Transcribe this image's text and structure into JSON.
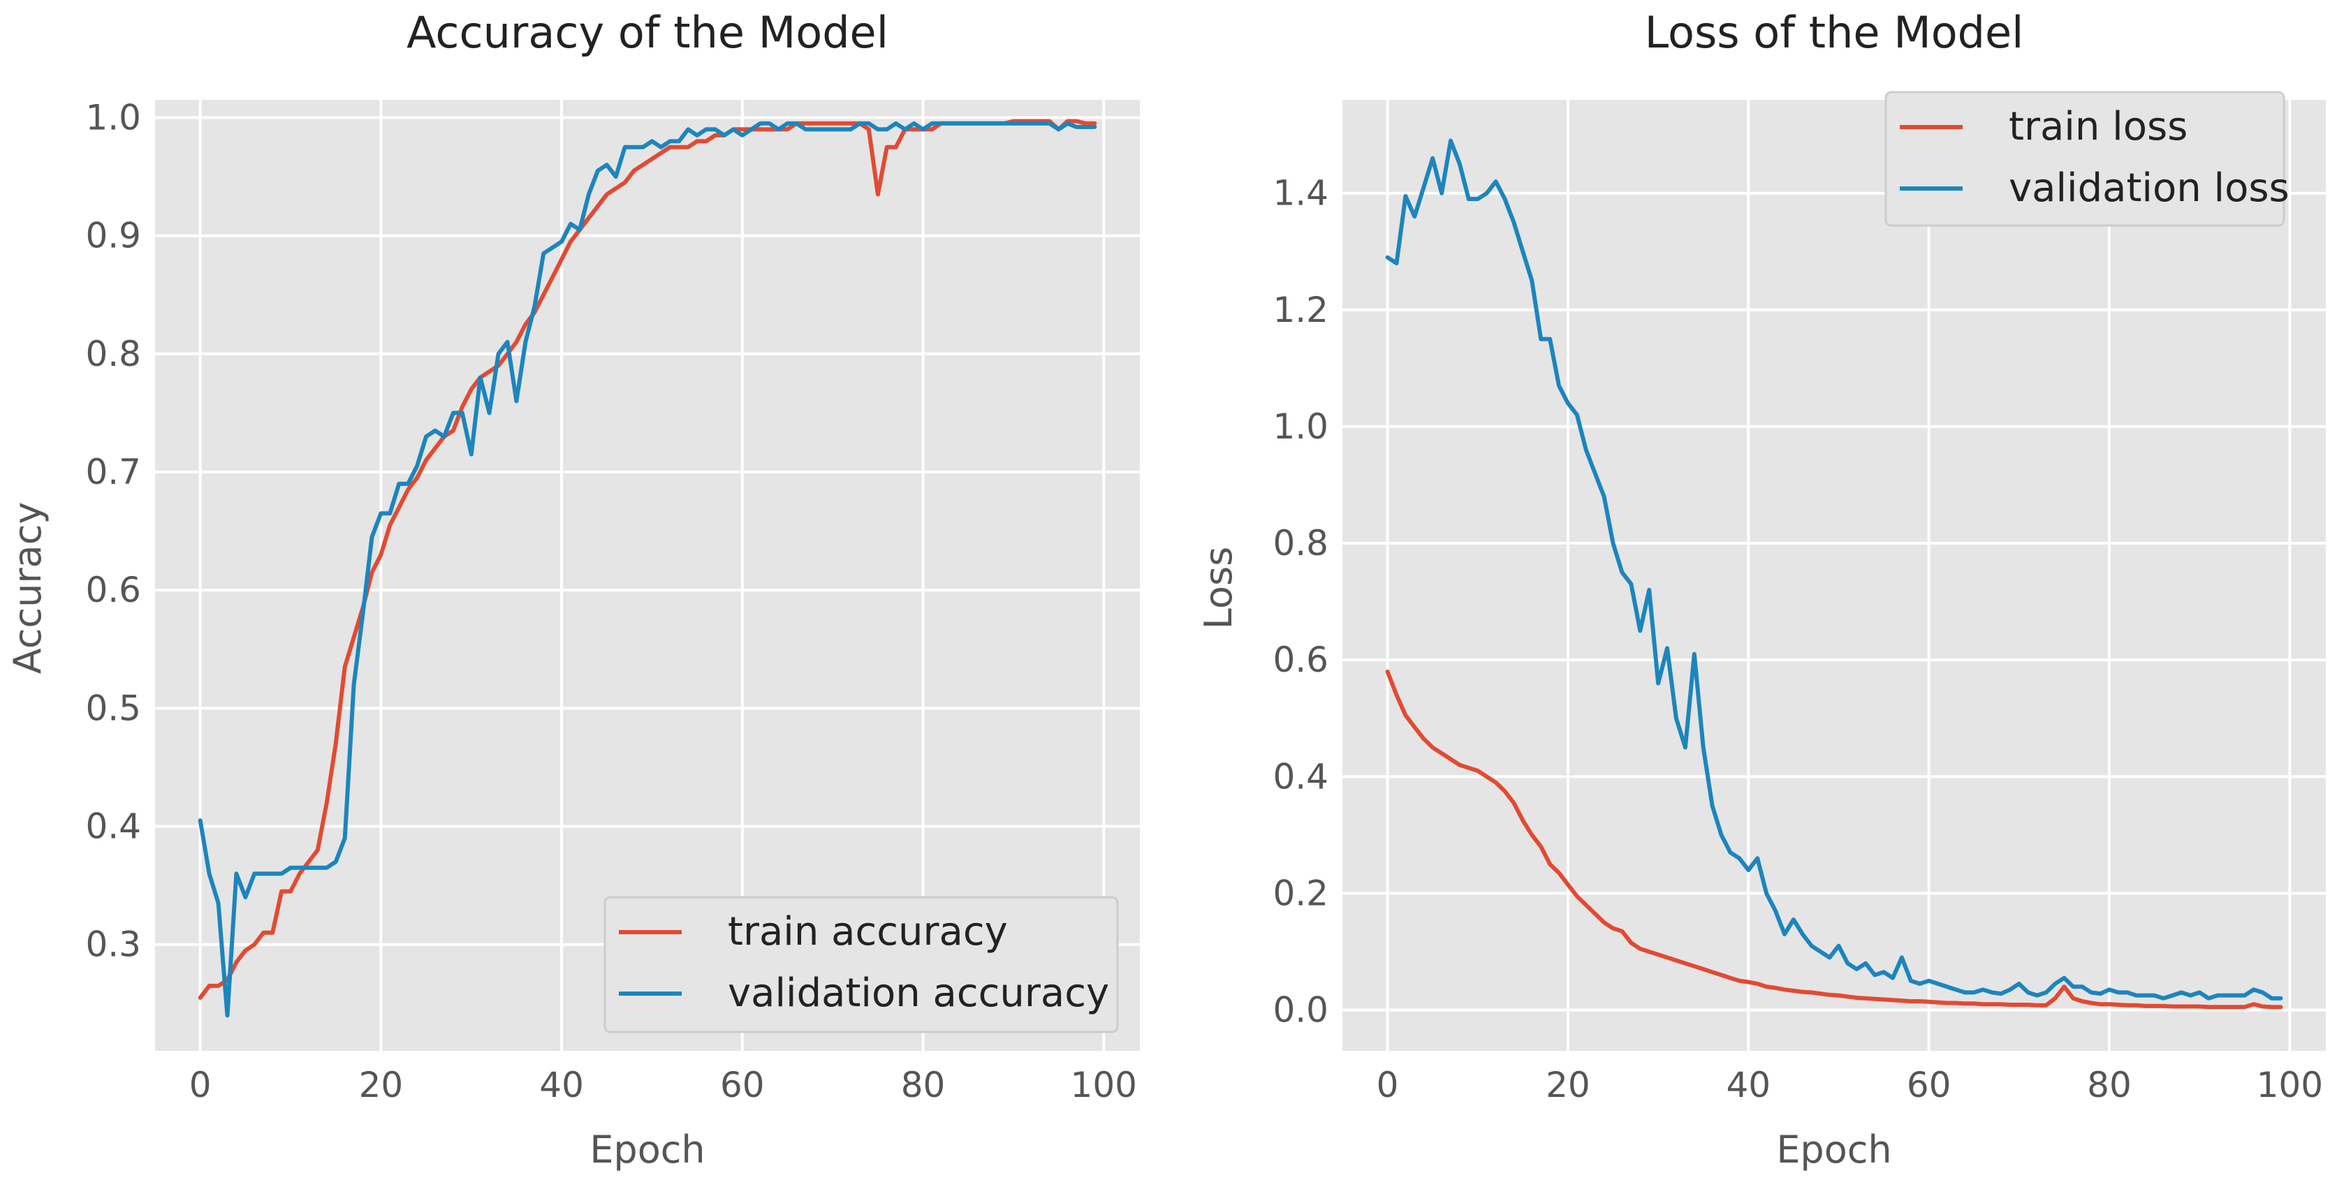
{
  "chart_data": [
    {
      "type": "line",
      "title": "Accuracy of the Model",
      "xlabel": "Epoch",
      "ylabel": "Accuracy",
      "xlim": [
        -5,
        104
      ],
      "ylim": [
        0.21,
        1.015
      ],
      "xticks": [
        0,
        20,
        40,
        60,
        80,
        100
      ],
      "yticks": [
        0.3,
        0.4,
        0.5,
        0.6,
        0.7,
        0.8,
        0.9,
        1.0
      ],
      "xtick_labels": [
        "0",
        "20",
        "40",
        "60",
        "80",
        "100"
      ],
      "ytick_labels": [
        "0.3",
        "0.4",
        "0.5",
        "0.6",
        "0.7",
        "0.8",
        "0.9",
        "1.0"
      ],
      "grid": true,
      "legend_position": "lower-right",
      "colors": {
        "train": "#E24A33",
        "validation": "#1C85BD",
        "background": "#E5E5E5",
        "grid": "#FFFFFF"
      },
      "series": [
        {
          "name": "train accuracy",
          "key": "train",
          "values": [
            0.255,
            0.265,
            0.265,
            0.27,
            0.285,
            0.295,
            0.3,
            0.31,
            0.31,
            0.345,
            0.345,
            0.36,
            0.37,
            0.38,
            0.42,
            0.47,
            0.535,
            0.56,
            0.585,
            0.615,
            0.63,
            0.655,
            0.67,
            0.685,
            0.695,
            0.71,
            0.72,
            0.73,
            0.735,
            0.755,
            0.77,
            0.78,
            0.785,
            0.79,
            0.8,
            0.81,
            0.825,
            0.835,
            0.85,
            0.865,
            0.88,
            0.895,
            0.905,
            0.915,
            0.925,
            0.935,
            0.94,
            0.945,
            0.955,
            0.96,
            0.965,
            0.97,
            0.975,
            0.975,
            0.975,
            0.98,
            0.98,
            0.985,
            0.985,
            0.99,
            0.99,
            0.99,
            0.99,
            0.99,
            0.99,
            0.99,
            0.995,
            0.995,
            0.995,
            0.995,
            0.995,
            0.995,
            0.995,
            0.995,
            0.99,
            0.935,
            0.975,
            0.975,
            0.99,
            0.99,
            0.99,
            0.99,
            0.995,
            0.995,
            0.995,
            0.995,
            0.995,
            0.995,
            0.995,
            0.995,
            0.997,
            0.997,
            0.997,
            0.997,
            0.997,
            0.99,
            0.997,
            0.997,
            0.995,
            0.995
          ]
        },
        {
          "name": "validation accuracy",
          "key": "validation",
          "values": [
            0.405,
            0.36,
            0.335,
            0.24,
            0.36,
            0.34,
            0.36,
            0.36,
            0.36,
            0.36,
            0.365,
            0.365,
            0.365,
            0.365,
            0.365,
            0.37,
            0.39,
            0.52,
            0.58,
            0.645,
            0.665,
            0.665,
            0.69,
            0.69,
            0.705,
            0.73,
            0.735,
            0.73,
            0.75,
            0.75,
            0.715,
            0.78,
            0.75,
            0.8,
            0.81,
            0.76,
            0.81,
            0.84,
            0.885,
            0.89,
            0.895,
            0.91,
            0.905,
            0.935,
            0.955,
            0.96,
            0.95,
            0.975,
            0.975,
            0.975,
            0.98,
            0.975,
            0.98,
            0.98,
            0.99,
            0.985,
            0.99,
            0.99,
            0.985,
            0.99,
            0.985,
            0.99,
            0.995,
            0.995,
            0.99,
            0.995,
            0.995,
            0.99,
            0.99,
            0.99,
            0.99,
            0.99,
            0.99,
            0.995,
            0.995,
            0.99,
            0.99,
            0.995,
            0.99,
            0.995,
            0.99,
            0.995,
            0.995,
            0.995,
            0.995,
            0.995,
            0.995,
            0.995,
            0.995,
            0.995,
            0.995,
            0.995,
            0.995,
            0.995,
            0.995,
            0.99,
            0.995,
            0.992,
            0.992,
            0.992
          ]
        }
      ]
    },
    {
      "type": "line",
      "title": "Loss of the Model",
      "xlabel": "Epoch",
      "ylabel": "Loss",
      "xlim": [
        -5,
        104
      ],
      "ylim": [
        -0.07,
        1.56
      ],
      "xticks": [
        0,
        20,
        40,
        60,
        80,
        100
      ],
      "yticks": [
        0.0,
        0.2,
        0.4,
        0.6,
        0.8,
        1.0,
        1.2,
        1.4
      ],
      "xtick_labels": [
        "0",
        "20",
        "40",
        "60",
        "80",
        "100"
      ],
      "ytick_labels": [
        "0.0",
        "0.2",
        "0.4",
        "0.6",
        "0.8",
        "1.0",
        "1.2",
        "1.4"
      ],
      "grid": true,
      "legend_position": "upper-right",
      "colors": {
        "train": "#E24A33",
        "validation": "#1C85BD",
        "background": "#E5E5E5",
        "grid": "#FFFFFF"
      },
      "series": [
        {
          "name": "train loss",
          "key": "train",
          "values": [
            0.58,
            0.54,
            0.505,
            0.485,
            0.465,
            0.45,
            0.44,
            0.43,
            0.42,
            0.415,
            0.41,
            0.4,
            0.39,
            0.375,
            0.355,
            0.325,
            0.3,
            0.28,
            0.25,
            0.235,
            0.215,
            0.195,
            0.18,
            0.165,
            0.15,
            0.14,
            0.135,
            0.115,
            0.105,
            0.1,
            0.095,
            0.09,
            0.085,
            0.08,
            0.075,
            0.07,
            0.065,
            0.06,
            0.055,
            0.05,
            0.048,
            0.045,
            0.04,
            0.038,
            0.035,
            0.033,
            0.031,
            0.03,
            0.028,
            0.026,
            0.025,
            0.023,
            0.021,
            0.02,
            0.019,
            0.018,
            0.017,
            0.016,
            0.015,
            0.015,
            0.014,
            0.013,
            0.012,
            0.012,
            0.011,
            0.011,
            0.01,
            0.01,
            0.01,
            0.009,
            0.009,
            0.009,
            0.008,
            0.008,
            0.02,
            0.04,
            0.02,
            0.015,
            0.012,
            0.01,
            0.01,
            0.009,
            0.008,
            0.008,
            0.007,
            0.007,
            0.007,
            0.006,
            0.006,
            0.006,
            0.006,
            0.005,
            0.005,
            0.005,
            0.005,
            0.005,
            0.01,
            0.006,
            0.005,
            0.005
          ]
        },
        {
          "name": "validation loss",
          "key": "validation",
          "values": [
            1.29,
            1.28,
            1.395,
            1.36,
            1.41,
            1.46,
            1.4,
            1.49,
            1.45,
            1.39,
            1.39,
            1.4,
            1.42,
            1.39,
            1.35,
            1.3,
            1.25,
            1.15,
            1.15,
            1.07,
            1.04,
            1.02,
            0.96,
            0.92,
            0.88,
            0.8,
            0.75,
            0.73,
            0.65,
            0.72,
            0.56,
            0.62,
            0.5,
            0.45,
            0.61,
            0.45,
            0.35,
            0.3,
            0.27,
            0.26,
            0.24,
            0.26,
            0.2,
            0.17,
            0.13,
            0.155,
            0.13,
            0.11,
            0.1,
            0.09,
            0.11,
            0.08,
            0.07,
            0.08,
            0.06,
            0.065,
            0.055,
            0.09,
            0.05,
            0.045,
            0.05,
            0.045,
            0.04,
            0.035,
            0.03,
            0.03,
            0.035,
            0.03,
            0.028,
            0.035,
            0.045,
            0.03,
            0.025,
            0.03,
            0.045,
            0.055,
            0.04,
            0.04,
            0.03,
            0.028,
            0.035,
            0.03,
            0.03,
            0.025,
            0.025,
            0.025,
            0.02,
            0.025,
            0.03,
            0.025,
            0.03,
            0.02,
            0.025,
            0.025,
            0.025,
            0.025,
            0.035,
            0.03,
            0.02,
            0.02
          ]
        }
      ]
    }
  ]
}
